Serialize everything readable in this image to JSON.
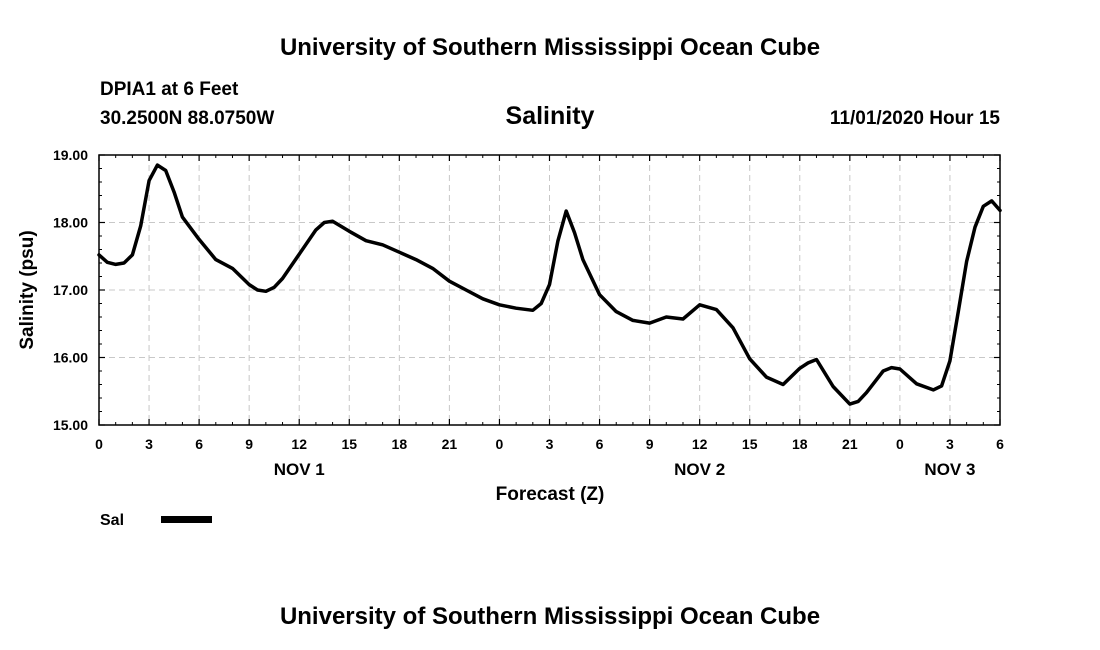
{
  "header": {
    "title_top": "University of Southern Mississippi Ocean Cube",
    "station": "DPIA1 at 6 Feet",
    "coords": "30.2500N 88.0750W",
    "variable": "Salinity",
    "timestamp": "11/01/2020 Hour 15",
    "title_bottom": "University of Southern Mississippi Ocean Cube"
  },
  "colors": {
    "line": "#000000",
    "grid": "#c8c8c8",
    "frame": "#000000"
  },
  "chart_data": {
    "type": "line",
    "xlabel": "Forecast (Z)",
    "ylabel": "Salinity (psu)",
    "ylim": [
      15.0,
      19.0
    ],
    "xlim": [
      0,
      54
    ],
    "grid": true,
    "legend_position": "bottom-left",
    "yticks": [
      "15.00",
      "16.00",
      "17.00",
      "18.00",
      "19.00"
    ],
    "xticks": [
      {
        "x": 0,
        "label": "0"
      },
      {
        "x": 3,
        "label": "3"
      },
      {
        "x": 6,
        "label": "6"
      },
      {
        "x": 9,
        "label": "9"
      },
      {
        "x": 12,
        "label": "12"
      },
      {
        "x": 15,
        "label": "15"
      },
      {
        "x": 18,
        "label": "18"
      },
      {
        "x": 21,
        "label": "21"
      },
      {
        "x": 24,
        "label": "0"
      },
      {
        "x": 27,
        "label": "3"
      },
      {
        "x": 30,
        "label": "6"
      },
      {
        "x": 33,
        "label": "9"
      },
      {
        "x": 36,
        "label": "12"
      },
      {
        "x": 39,
        "label": "15"
      },
      {
        "x": 42,
        "label": "18"
      },
      {
        "x": 45,
        "label": "21"
      },
      {
        "x": 48,
        "label": "0"
      },
      {
        "x": 51,
        "label": "3"
      },
      {
        "x": 54,
        "label": "6"
      }
    ],
    "date_labels": [
      {
        "x": 12,
        "label": "NOV 1"
      },
      {
        "x": 36,
        "label": "NOV 2"
      },
      {
        "x": 51,
        "label": "NOV 3"
      }
    ],
    "series": [
      {
        "name": "Sal",
        "x": [
          0,
          0.5,
          1,
          1.5,
          2,
          2.5,
          3,
          3.5,
          4,
          4.5,
          5,
          6,
          7,
          8,
          9,
          9.5,
          10,
          10.5,
          11,
          12,
          13,
          13.5,
          14,
          15,
          16,
          17,
          18,
          19,
          20,
          21,
          22,
          23,
          24,
          25,
          26,
          26.5,
          27,
          27.5,
          28,
          28.5,
          29,
          30,
          31,
          32,
          33,
          34,
          35,
          36,
          37,
          38,
          39,
          40,
          41,
          42,
          42.5,
          43,
          44,
          45,
          45.5,
          46,
          47,
          47.5,
          48,
          49,
          50,
          50.5,
          51,
          51.5,
          52,
          52.5,
          53,
          53.5,
          54
        ],
        "values": [
          17.52,
          17.41,
          17.38,
          17.4,
          17.52,
          17.95,
          18.62,
          18.85,
          18.77,
          18.45,
          18.08,
          17.75,
          17.45,
          17.32,
          17.08,
          17.0,
          16.98,
          17.04,
          17.17,
          17.53,
          17.89,
          18.0,
          18.02,
          17.87,
          17.73,
          17.67,
          17.56,
          17.45,
          17.32,
          17.13,
          17.0,
          16.87,
          16.78,
          16.73,
          16.7,
          16.8,
          17.08,
          17.72,
          18.17,
          17.85,
          17.45,
          16.93,
          16.68,
          16.55,
          16.51,
          16.6,
          16.57,
          16.78,
          16.71,
          16.44,
          15.98,
          15.71,
          15.6,
          15.84,
          15.92,
          15.97,
          15.57,
          15.31,
          15.35,
          15.48,
          15.8,
          15.85,
          15.83,
          15.61,
          15.52,
          15.58,
          15.95,
          16.68,
          17.42,
          17.93,
          18.24,
          18.32,
          18.18
        ]
      }
    ]
  }
}
